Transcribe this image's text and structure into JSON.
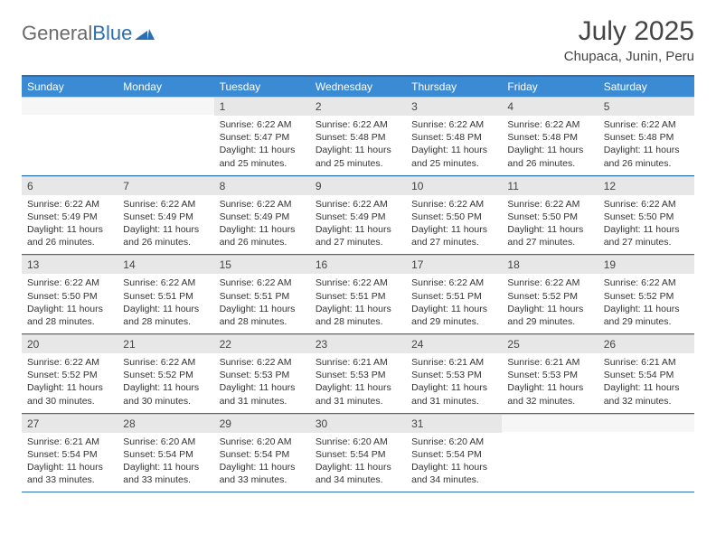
{
  "brand": {
    "part1": "General",
    "part2": "Blue"
  },
  "title": "July 2025",
  "location": "Chupaca, Junin, Peru",
  "days_of_week": [
    "Sunday",
    "Monday",
    "Tuesday",
    "Wednesday",
    "Thursday",
    "Friday",
    "Saturday"
  ],
  "colors": {
    "header_bar": "#3b8bd4",
    "rule": "#2a6fb5",
    "daynum_bg": "#e7e7e7",
    "text": "#333333"
  },
  "weeks": [
    [
      {
        "n": "",
        "sr": "",
        "ss": "",
        "dl": ""
      },
      {
        "n": "",
        "sr": "",
        "ss": "",
        "dl": ""
      },
      {
        "n": "1",
        "sr": "Sunrise: 6:22 AM",
        "ss": "Sunset: 5:47 PM",
        "dl": "Daylight: 11 hours and 25 minutes."
      },
      {
        "n": "2",
        "sr": "Sunrise: 6:22 AM",
        "ss": "Sunset: 5:48 PM",
        "dl": "Daylight: 11 hours and 25 minutes."
      },
      {
        "n": "3",
        "sr": "Sunrise: 6:22 AM",
        "ss": "Sunset: 5:48 PM",
        "dl": "Daylight: 11 hours and 25 minutes."
      },
      {
        "n": "4",
        "sr": "Sunrise: 6:22 AM",
        "ss": "Sunset: 5:48 PM",
        "dl": "Daylight: 11 hours and 26 minutes."
      },
      {
        "n": "5",
        "sr": "Sunrise: 6:22 AM",
        "ss": "Sunset: 5:48 PM",
        "dl": "Daylight: 11 hours and 26 minutes."
      }
    ],
    [
      {
        "n": "6",
        "sr": "Sunrise: 6:22 AM",
        "ss": "Sunset: 5:49 PM",
        "dl": "Daylight: 11 hours and 26 minutes."
      },
      {
        "n": "7",
        "sr": "Sunrise: 6:22 AM",
        "ss": "Sunset: 5:49 PM",
        "dl": "Daylight: 11 hours and 26 minutes."
      },
      {
        "n": "8",
        "sr": "Sunrise: 6:22 AM",
        "ss": "Sunset: 5:49 PM",
        "dl": "Daylight: 11 hours and 26 minutes."
      },
      {
        "n": "9",
        "sr": "Sunrise: 6:22 AM",
        "ss": "Sunset: 5:49 PM",
        "dl": "Daylight: 11 hours and 27 minutes."
      },
      {
        "n": "10",
        "sr": "Sunrise: 6:22 AM",
        "ss": "Sunset: 5:50 PM",
        "dl": "Daylight: 11 hours and 27 minutes."
      },
      {
        "n": "11",
        "sr": "Sunrise: 6:22 AM",
        "ss": "Sunset: 5:50 PM",
        "dl": "Daylight: 11 hours and 27 minutes."
      },
      {
        "n": "12",
        "sr": "Sunrise: 6:22 AM",
        "ss": "Sunset: 5:50 PM",
        "dl": "Daylight: 11 hours and 27 minutes."
      }
    ],
    [
      {
        "n": "13",
        "sr": "Sunrise: 6:22 AM",
        "ss": "Sunset: 5:50 PM",
        "dl": "Daylight: 11 hours and 28 minutes."
      },
      {
        "n": "14",
        "sr": "Sunrise: 6:22 AM",
        "ss": "Sunset: 5:51 PM",
        "dl": "Daylight: 11 hours and 28 minutes."
      },
      {
        "n": "15",
        "sr": "Sunrise: 6:22 AM",
        "ss": "Sunset: 5:51 PM",
        "dl": "Daylight: 11 hours and 28 minutes."
      },
      {
        "n": "16",
        "sr": "Sunrise: 6:22 AM",
        "ss": "Sunset: 5:51 PM",
        "dl": "Daylight: 11 hours and 28 minutes."
      },
      {
        "n": "17",
        "sr": "Sunrise: 6:22 AM",
        "ss": "Sunset: 5:51 PM",
        "dl": "Daylight: 11 hours and 29 minutes."
      },
      {
        "n": "18",
        "sr": "Sunrise: 6:22 AM",
        "ss": "Sunset: 5:52 PM",
        "dl": "Daylight: 11 hours and 29 minutes."
      },
      {
        "n": "19",
        "sr": "Sunrise: 6:22 AM",
        "ss": "Sunset: 5:52 PM",
        "dl": "Daylight: 11 hours and 29 minutes."
      }
    ],
    [
      {
        "n": "20",
        "sr": "Sunrise: 6:22 AM",
        "ss": "Sunset: 5:52 PM",
        "dl": "Daylight: 11 hours and 30 minutes."
      },
      {
        "n": "21",
        "sr": "Sunrise: 6:22 AM",
        "ss": "Sunset: 5:52 PM",
        "dl": "Daylight: 11 hours and 30 minutes."
      },
      {
        "n": "22",
        "sr": "Sunrise: 6:22 AM",
        "ss": "Sunset: 5:53 PM",
        "dl": "Daylight: 11 hours and 31 minutes."
      },
      {
        "n": "23",
        "sr": "Sunrise: 6:21 AM",
        "ss": "Sunset: 5:53 PM",
        "dl": "Daylight: 11 hours and 31 minutes."
      },
      {
        "n": "24",
        "sr": "Sunrise: 6:21 AM",
        "ss": "Sunset: 5:53 PM",
        "dl": "Daylight: 11 hours and 31 minutes."
      },
      {
        "n": "25",
        "sr": "Sunrise: 6:21 AM",
        "ss": "Sunset: 5:53 PM",
        "dl": "Daylight: 11 hours and 32 minutes."
      },
      {
        "n": "26",
        "sr": "Sunrise: 6:21 AM",
        "ss": "Sunset: 5:54 PM",
        "dl": "Daylight: 11 hours and 32 minutes."
      }
    ],
    [
      {
        "n": "27",
        "sr": "Sunrise: 6:21 AM",
        "ss": "Sunset: 5:54 PM",
        "dl": "Daylight: 11 hours and 33 minutes."
      },
      {
        "n": "28",
        "sr": "Sunrise: 6:20 AM",
        "ss": "Sunset: 5:54 PM",
        "dl": "Daylight: 11 hours and 33 minutes."
      },
      {
        "n": "29",
        "sr": "Sunrise: 6:20 AM",
        "ss": "Sunset: 5:54 PM",
        "dl": "Daylight: 11 hours and 33 minutes."
      },
      {
        "n": "30",
        "sr": "Sunrise: 6:20 AM",
        "ss": "Sunset: 5:54 PM",
        "dl": "Daylight: 11 hours and 34 minutes."
      },
      {
        "n": "31",
        "sr": "Sunrise: 6:20 AM",
        "ss": "Sunset: 5:54 PM",
        "dl": "Daylight: 11 hours and 34 minutes."
      },
      {
        "n": "",
        "sr": "",
        "ss": "",
        "dl": ""
      },
      {
        "n": "",
        "sr": "",
        "ss": "",
        "dl": ""
      }
    ]
  ]
}
